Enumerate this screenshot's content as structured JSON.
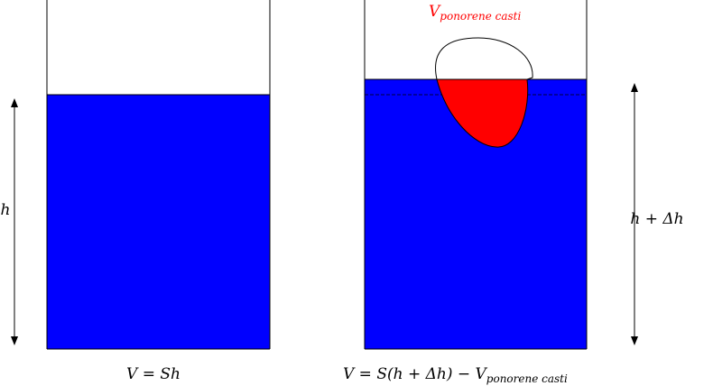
{
  "left": {
    "height_label": "h",
    "formula": "V = Sh"
  },
  "right": {
    "object_label": {
      "base": "V",
      "subscript": "ponorene casti"
    },
    "height_label": "h + Δh",
    "formula": {
      "base": "V = S(h + Δh) − V",
      "subscript": "ponorene casti"
    }
  }
}
